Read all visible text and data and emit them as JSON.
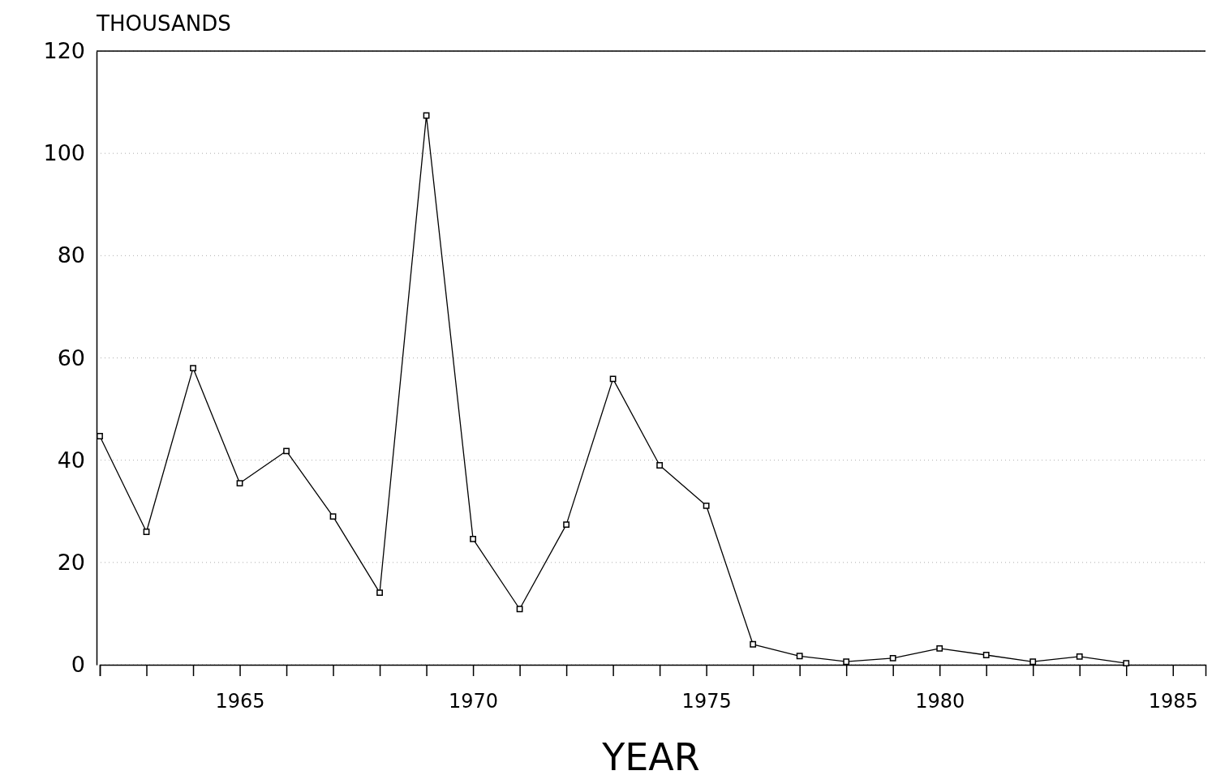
{
  "chart_data": {
    "type": "line",
    "ylabel": "THOUSANDS",
    "xlabel": "YEAR",
    "x": [
      1962,
      1963,
      1964,
      1965,
      1966,
      1967,
      1968,
      1969,
      1970,
      1971,
      1972,
      1973,
      1974,
      1975,
      1976,
      1977,
      1978,
      1979,
      1980,
      1981,
      1982,
      1983,
      1984
    ],
    "series": [
      {
        "color": "#000000",
        "values": [
          44.7,
          26.0,
          58.0,
          35.5,
          41.8,
          29.0,
          14.1,
          107.4,
          24.6,
          10.9,
          27.4,
          55.9,
          39.0,
          31.1,
          4.0,
          1.7,
          0.6,
          1.3,
          3.2,
          1.9,
          0.6,
          1.6,
          0.3
        ]
      }
    ],
    "xlim": [
      1962,
      1985.7
    ],
    "xticks": [
      {
        "value": 1962,
        "label": null
      },
      {
        "value": 1963,
        "label": null
      },
      {
        "value": 1964,
        "label": null
      },
      1965,
      {
        "value": 1966,
        "label": null
      },
      {
        "value": 1967,
        "label": null
      },
      {
        "value": 1968,
        "label": null
      },
      {
        "value": 1969,
        "label": null
      },
      1970,
      {
        "value": 1971,
        "label": null
      },
      {
        "value": 1972,
        "label": null
      },
      {
        "value": 1973,
        "label": null
      },
      {
        "value": 1974,
        "label": null
      },
      1975,
      {
        "value": 1976,
        "label": null
      },
      {
        "value": 1977,
        "label": null
      },
      {
        "value": 1978,
        "label": null
      },
      {
        "value": 1979,
        "label": null
      },
      1980,
      {
        "value": 1981,
        "label": null
      },
      {
        "value": 1982,
        "label": null
      },
      {
        "value": 1983,
        "label": null
      },
      {
        "value": 1984,
        "label": null
      },
      1985
    ],
    "ylim": [
      0,
      120
    ],
    "yticks": [
      0,
      20,
      40,
      60,
      80,
      100,
      120
    ],
    "grid": "y",
    "marker": "square",
    "line_style": "solid"
  }
}
